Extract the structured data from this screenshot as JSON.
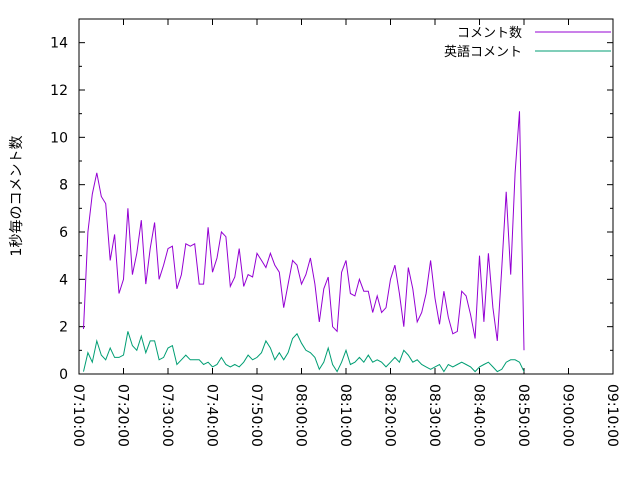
{
  "chart_data": {
    "type": "line",
    "title": "",
    "xlabel": "",
    "ylabel": "1秒毎のコメント数",
    "ylim": [
      0,
      15
    ],
    "yticks": [
      0,
      2,
      4,
      6,
      8,
      10,
      12,
      14
    ],
    "xtick_labels": [
      "07:10:00",
      "07:20:00",
      "07:30:00",
      "07:40:00",
      "07:50:00",
      "08:00:00",
      "08:10:00",
      "08:20:00",
      "08:30:00",
      "08:40:00",
      "08:50:00",
      "09:00:00",
      "09:10:00"
    ],
    "xlim_minutes": [
      0,
      120
    ],
    "x_step_minutes": 1,
    "x_start_minute": 1,
    "legend_position": "top-right",
    "series": [
      {
        "name": "コメント数",
        "color": "#9400d3",
        "values": [
          1.9,
          6.0,
          7.6,
          8.5,
          7.5,
          7.2,
          4.8,
          5.9,
          3.4,
          4.0,
          7.0,
          4.2,
          5.1,
          6.5,
          3.8,
          5.3,
          6.4,
          4.0,
          4.6,
          5.3,
          5.4,
          3.6,
          4.2,
          5.5,
          5.4,
          5.5,
          3.8,
          3.8,
          6.2,
          4.3,
          4.9,
          6.0,
          5.8,
          3.7,
          4.1,
          5.3,
          3.7,
          4.2,
          4.1,
          5.1,
          4.8,
          4.5,
          5.1,
          4.6,
          4.3,
          2.8,
          3.8,
          4.8,
          4.6,
          3.8,
          4.2,
          4.9,
          3.8,
          2.2,
          3.6,
          4.1,
          2.0,
          1.8,
          4.3,
          4.8,
          3.4,
          3.3,
          4.0,
          3.5,
          3.5,
          2.6,
          3.3,
          2.6,
          2.8,
          4.0,
          4.6,
          3.4,
          2.0,
          4.5,
          3.6,
          2.2,
          2.6,
          3.4,
          4.8,
          3.2,
          2.1,
          3.5,
          2.4,
          1.7,
          1.8,
          3.5,
          3.3,
          2.5,
          1.5,
          5.0,
          2.2,
          5.1,
          2.8,
          1.4,
          4.5,
          7.7,
          4.2,
          8.5,
          11.1,
          1.0
        ]
      },
      {
        "name": "英語コメント",
        "color": "#009e73",
        "values": [
          0.1,
          0.9,
          0.5,
          1.4,
          0.8,
          0.6,
          1.1,
          0.7,
          0.7,
          0.8,
          1.8,
          1.2,
          1.0,
          1.6,
          0.9,
          1.4,
          1.4,
          0.6,
          0.7,
          1.1,
          1.2,
          0.4,
          0.6,
          0.8,
          0.6,
          0.6,
          0.6,
          0.4,
          0.5,
          0.3,
          0.4,
          0.7,
          0.4,
          0.3,
          0.4,
          0.3,
          0.5,
          0.8,
          0.6,
          0.7,
          0.9,
          1.4,
          1.1,
          0.6,
          0.9,
          0.6,
          0.9,
          1.5,
          1.7,
          1.3,
          1.0,
          0.9,
          0.7,
          0.2,
          0.5,
          1.1,
          0.4,
          0.1,
          0.5,
          1.0,
          0.4,
          0.5,
          0.7,
          0.5,
          0.8,
          0.5,
          0.6,
          0.5,
          0.3,
          0.5,
          0.7,
          0.5,
          1.0,
          0.8,
          0.5,
          0.6,
          0.4,
          0.3,
          0.2,
          0.3,
          0.4,
          0.1,
          0.4,
          0.3,
          0.4,
          0.5,
          0.4,
          0.3,
          0.1,
          0.3,
          0.4,
          0.5,
          0.3,
          0.1,
          0.2,
          0.5,
          0.6,
          0.6,
          0.5,
          0.1
        ]
      }
    ]
  }
}
